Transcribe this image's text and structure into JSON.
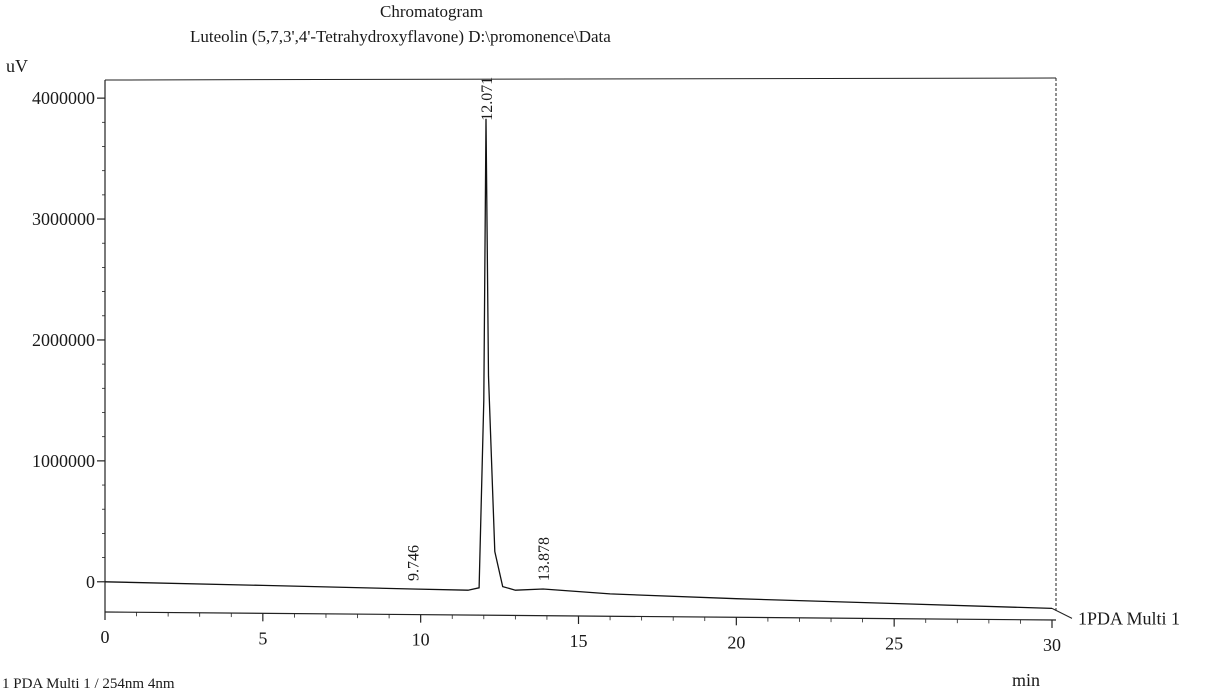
{
  "chart_data": {
    "type": "line",
    "title": "Chromatogram",
    "subtitle": "Luteolin (5,7,3',4'-Tetrahydroxyflavone) D:\\promonence\\Data",
    "ylabel": "uV",
    "xlabel": "min",
    "xlim": [
      0,
      30
    ],
    "ylim": [
      -250000,
      4150000
    ],
    "xticks": [
      0,
      5,
      10,
      15,
      20,
      25,
      30
    ],
    "yticks": [
      0,
      1000000,
      2000000,
      3000000,
      4000000
    ],
    "grid": false,
    "series": [
      {
        "name": "1PDA Multi 1",
        "x": [
          0,
          5,
          9.746,
          11.5,
          11.85,
          12.0,
          12.071,
          12.15,
          12.35,
          12.6,
          13.0,
          13.878,
          16,
          20,
          25,
          30
        ],
        "y": [
          0,
          -30000,
          -60000,
          -70000,
          -50000,
          1500000,
          3830000,
          1700000,
          250000,
          -40000,
          -70000,
          -60000,
          -100000,
          -140000,
          -180000,
          -220000
        ]
      }
    ],
    "peak_labels": [
      {
        "x": 9.746,
        "y": -60000,
        "text": "9.746"
      },
      {
        "x": 12.071,
        "y": 3830000,
        "text": "12.071"
      },
      {
        "x": 13.878,
        "y": -60000,
        "text": "13.878"
      }
    ],
    "footnote": "1  PDA Multi 1 / 254nm 4nm"
  }
}
